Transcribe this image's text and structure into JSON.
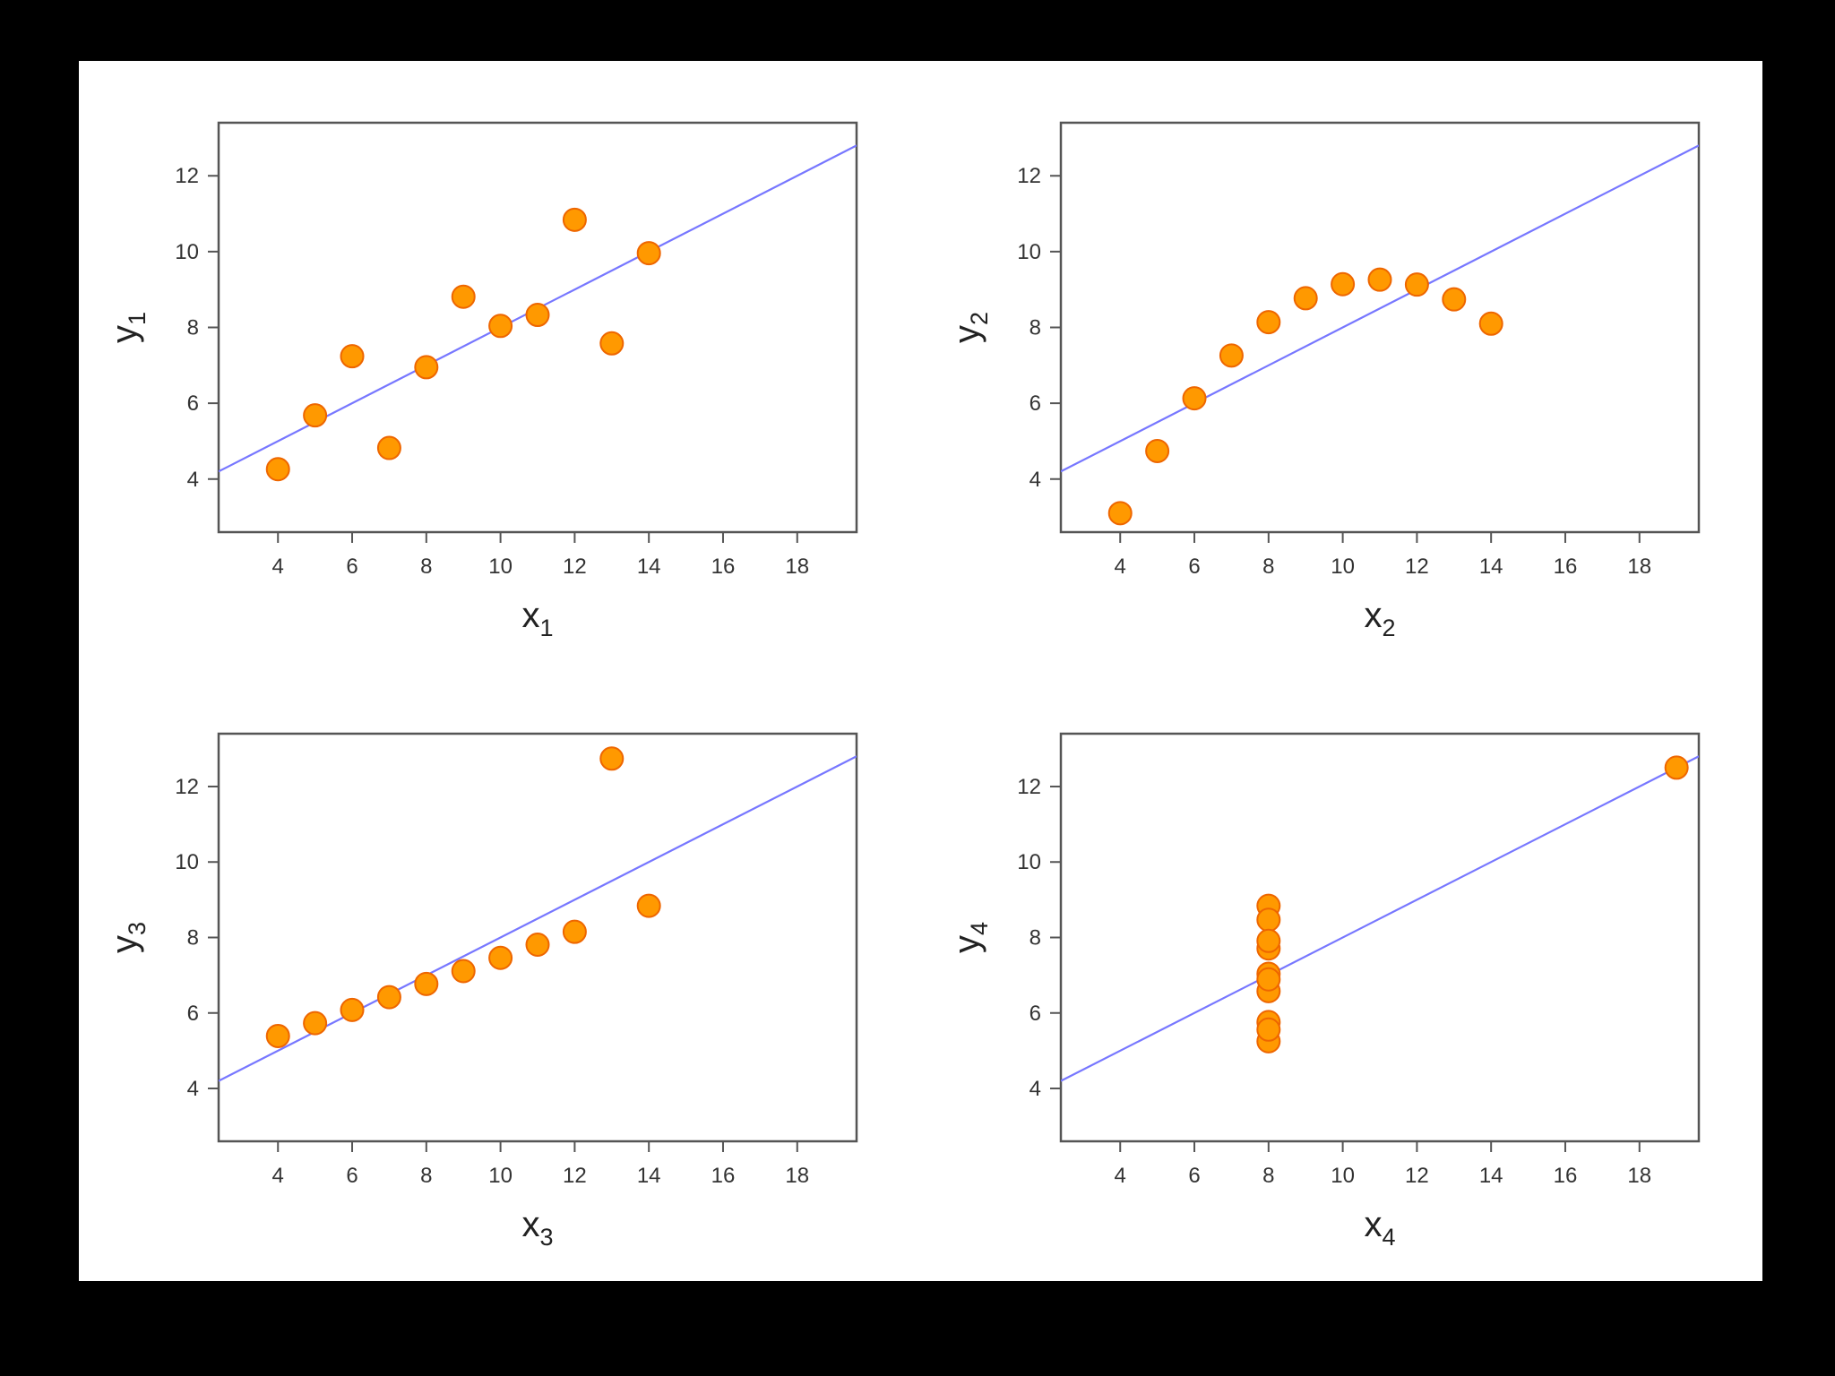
{
  "colors": {
    "background": "#000000",
    "panel": "#ffffff",
    "frame": "#555555",
    "point_fill": "#ff9900",
    "point_stroke": "#ee6600",
    "fit_line": "#7777ff"
  },
  "chart_data": [
    {
      "type": "scatter",
      "xlabel": "x",
      "xlabel_sub": "1",
      "ylabel": "y",
      "ylabel_sub": "1",
      "xlim": [
        2.4,
        19.6
      ],
      "ylim": [
        2.6,
        13.4
      ],
      "xticks": [
        4,
        6,
        8,
        10,
        12,
        14,
        16,
        18
      ],
      "yticks": [
        4,
        6,
        8,
        10,
        12
      ],
      "x": [
        10,
        8,
        13,
        9,
        11,
        14,
        6,
        4,
        12,
        7,
        5
      ],
      "y": [
        8.04,
        6.95,
        7.58,
        8.81,
        8.33,
        9.96,
        7.24,
        4.26,
        10.84,
        4.82,
        5.68
      ],
      "fit": {
        "intercept": 3.0,
        "slope": 0.5
      }
    },
    {
      "type": "scatter",
      "xlabel": "x",
      "xlabel_sub": "2",
      "ylabel": "y",
      "ylabel_sub": "2",
      "xlim": [
        2.4,
        19.6
      ],
      "ylim": [
        2.6,
        13.4
      ],
      "xticks": [
        4,
        6,
        8,
        10,
        12,
        14,
        16,
        18
      ],
      "yticks": [
        4,
        6,
        8,
        10,
        12
      ],
      "x": [
        10,
        8,
        13,
        9,
        11,
        14,
        6,
        4,
        12,
        7,
        5
      ],
      "y": [
        9.14,
        8.14,
        8.74,
        8.77,
        9.26,
        8.1,
        6.13,
        3.1,
        9.13,
        7.26,
        4.74
      ],
      "fit": {
        "intercept": 3.0,
        "slope": 0.5
      }
    },
    {
      "type": "scatter",
      "xlabel": "x",
      "xlabel_sub": "3",
      "ylabel": "y",
      "ylabel_sub": "3",
      "xlim": [
        2.4,
        19.6
      ],
      "ylim": [
        2.6,
        13.4
      ],
      "xticks": [
        4,
        6,
        8,
        10,
        12,
        14,
        16,
        18
      ],
      "yticks": [
        4,
        6,
        8,
        10,
        12
      ],
      "x": [
        10,
        8,
        13,
        9,
        11,
        14,
        6,
        4,
        12,
        7,
        5
      ],
      "y": [
        7.46,
        6.77,
        12.74,
        7.11,
        7.81,
        8.84,
        6.08,
        5.39,
        8.15,
        6.42,
        5.73
      ],
      "fit": {
        "intercept": 3.0,
        "slope": 0.5
      }
    },
    {
      "type": "scatter",
      "xlabel": "x",
      "xlabel_sub": "4",
      "ylabel": "y",
      "ylabel_sub": "4",
      "xlim": [
        2.4,
        19.6
      ],
      "ylim": [
        2.6,
        13.4
      ],
      "xticks": [
        4,
        6,
        8,
        10,
        12,
        14,
        16,
        18
      ],
      "yticks": [
        4,
        6,
        8,
        10,
        12
      ],
      "x": [
        8,
        8,
        8,
        8,
        8,
        8,
        8,
        19,
        8,
        8,
        8
      ],
      "y": [
        6.58,
        5.76,
        7.71,
        8.84,
        8.47,
        7.04,
        5.25,
        12.5,
        5.56,
        7.91,
        6.89
      ],
      "fit": {
        "intercept": 3.0,
        "slope": 0.5
      }
    }
  ]
}
